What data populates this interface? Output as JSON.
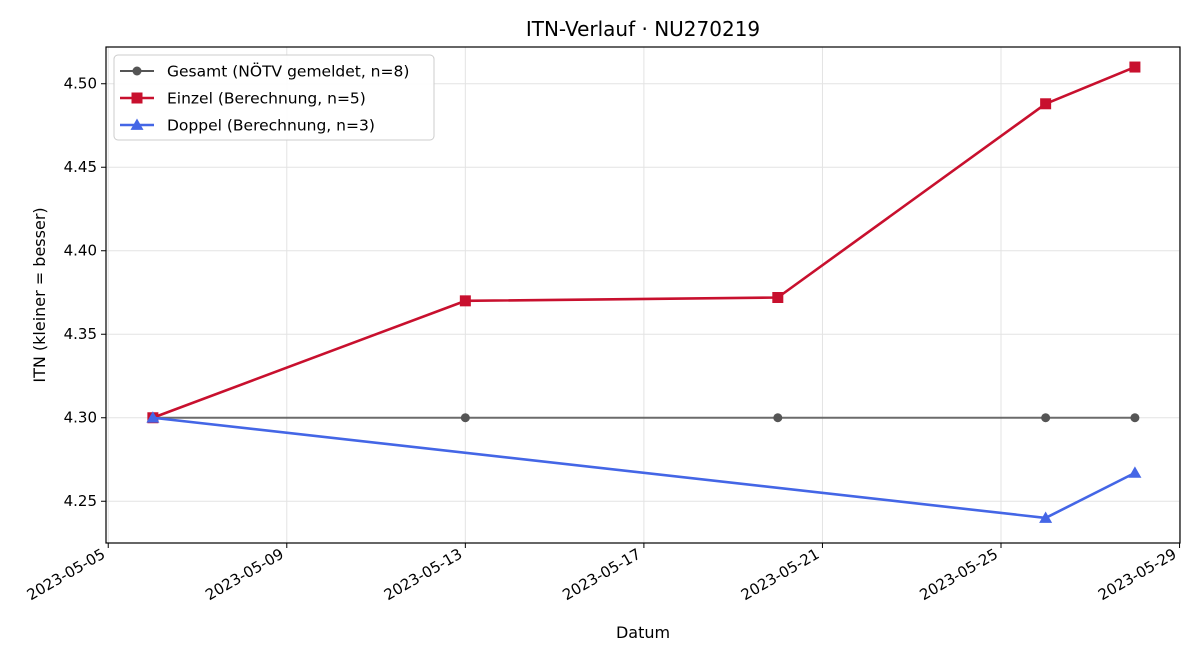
{
  "chart_data": {
    "type": "line",
    "title": "ITN-Verlauf · NU270219",
    "xlabel": "Datum",
    "ylabel": "ITN  (kleiner = besser)",
    "x_type": "date",
    "xlim": [
      "2023-05-05",
      "2023-05-29"
    ],
    "ylim": [
      4.225,
      4.522
    ],
    "x_ticks": [
      "2023-05-05",
      "2023-05-09",
      "2023-05-13",
      "2023-05-17",
      "2023-05-21",
      "2023-05-25",
      "2023-05-29"
    ],
    "y_ticks": [
      4.25,
      4.3,
      4.35,
      4.4,
      4.45,
      4.5
    ],
    "y_tick_labels": [
      "4.25",
      "4.30",
      "4.35",
      "4.40",
      "4.45",
      "4.50"
    ],
    "grid": true,
    "legend_position": "top-left",
    "series": [
      {
        "name": "Gesamt (NÖTV gemeldet, n=8)",
        "color": "#555555",
        "marker": "circle",
        "points": [
          {
            "x": "2023-05-06",
            "y": 4.3
          },
          {
            "x": "2023-05-13",
            "y": 4.3
          },
          {
            "x": "2023-05-20",
            "y": 4.3
          },
          {
            "x": "2023-05-26",
            "y": 4.3
          },
          {
            "x": "2023-05-28",
            "y": 4.3
          }
        ]
      },
      {
        "name": "Einzel (Berechnung, n=5)",
        "color": "#c8102e",
        "marker": "square",
        "points": [
          {
            "x": "2023-05-06",
            "y": 4.3
          },
          {
            "x": "2023-05-13",
            "y": 4.37
          },
          {
            "x": "2023-05-20",
            "y": 4.372
          },
          {
            "x": "2023-05-26",
            "y": 4.488
          },
          {
            "x": "2023-05-28",
            "y": 4.51
          }
        ]
      },
      {
        "name": "Doppel (Berechnung, n=3)",
        "color": "#4466e6",
        "marker": "triangle",
        "points": [
          {
            "x": "2023-05-06",
            "y": 4.3
          },
          {
            "x": "2023-05-26",
            "y": 4.24
          },
          {
            "x": "2023-05-28",
            "y": 4.267
          }
        ]
      }
    ]
  }
}
